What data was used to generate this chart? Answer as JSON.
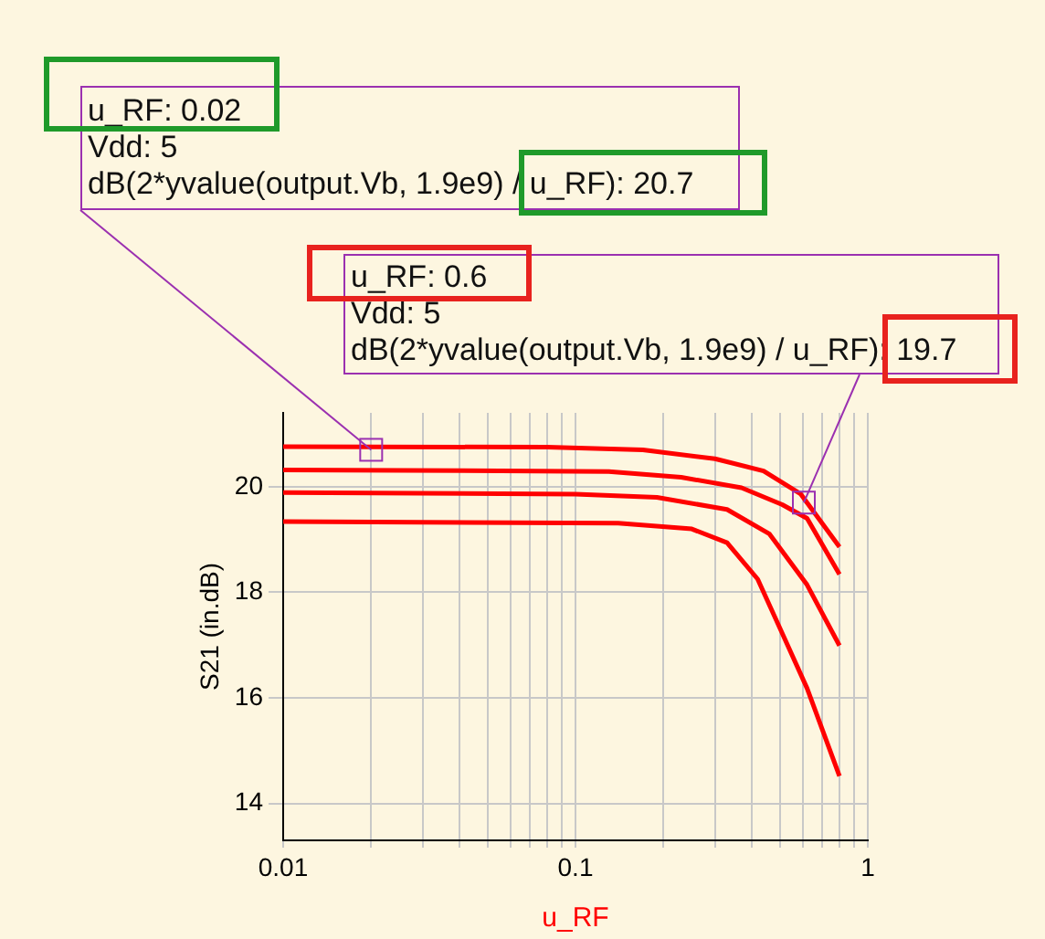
{
  "chart_data": {
    "type": "line",
    "xlabel": "u_RF",
    "ylabel": "S21 (in.dB)",
    "log": "x",
    "grid": true,
    "legend": false,
    "marker": "none",
    "line_style": "solid",
    "xlim": [
      0.01,
      1
    ],
    "ylim": [
      13.3,
      21.4
    ],
    "xticks": [
      0.01,
      {
        "value": 0.02,
        "label": null
      },
      {
        "value": 0.03,
        "label": null
      },
      {
        "value": 0.04,
        "label": null
      },
      {
        "value": 0.05,
        "label": null
      },
      {
        "value": 0.06,
        "label": null
      },
      {
        "value": 0.07,
        "label": null
      },
      {
        "value": 0.08,
        "label": null
      },
      {
        "value": 0.09,
        "label": null
      },
      0.1,
      {
        "value": 0.2,
        "label": null
      },
      {
        "value": 0.3,
        "label": null
      },
      {
        "value": 0.4,
        "label": null
      },
      {
        "value": 0.5,
        "label": null
      },
      {
        "value": 0.6,
        "label": null
      },
      {
        "value": 0.7,
        "label": null
      },
      {
        "value": 0.8,
        "label": null
      },
      {
        "value": 0.9,
        "label": null
      },
      1
    ],
    "yticks": [
      14,
      16,
      18,
      20
    ],
    "series": [
      {
        "color": "#ff0000",
        "x": [
          0.01,
          0.08,
          0.17,
          0.3,
          0.44,
          0.59,
          0.8
        ],
        "values": [
          20.76,
          20.75,
          20.7,
          20.53,
          20.3,
          19.86,
          18.86
        ]
      },
      {
        "color": "#ff0000",
        "x": [
          0.01,
          0.13,
          0.23,
          0.37,
          0.51,
          0.62,
          0.8
        ],
        "values": [
          20.32,
          20.29,
          20.18,
          19.98,
          19.66,
          19.4,
          18.34
        ]
      },
      {
        "color": "#ff0000",
        "x": [
          0.01,
          0.1,
          0.19,
          0.33,
          0.46,
          0.62,
          0.8
        ],
        "values": [
          19.89,
          19.86,
          19.8,
          19.57,
          19.11,
          18.14,
          16.99
        ]
      },
      {
        "color": "#ff0000",
        "x": [
          0.01,
          0.14,
          0.25,
          0.33,
          0.42,
          0.51,
          0.62,
          0.8
        ],
        "values": [
          19.34,
          19.31,
          19.2,
          18.94,
          18.25,
          17.22,
          16.18,
          14.52
        ]
      }
    ],
    "annotations": [
      {
        "text": "u_RF: 0.02\nVdd: 5\ndB(2*yvalue(output.Vb, 1.9e9) / u_RF): 20.7",
        "x": 0.02,
        "y": 20.7
      },
      {
        "text": "u_RF: 0.6\nVdd: 5\ndB(2*yvalue(output.Vb, 1.9e9) / u_RF): 19.7",
        "x": 0.6,
        "y": 19.7
      }
    ]
  }
}
